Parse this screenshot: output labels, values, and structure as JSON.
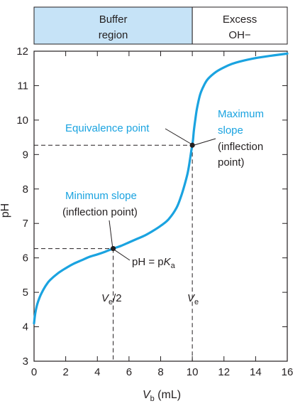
{
  "chart_data": {
    "type": "line",
    "xlabel_main": "V",
    "xlabel_sub": "b",
    "xlabel_unit": " (mL)",
    "ylabel": "pH",
    "xlim": [
      0,
      16
    ],
    "ylim": [
      3,
      12
    ],
    "x_ticks": [
      "0",
      "2",
      "4",
      "6",
      "8",
      "10",
      "12",
      "14",
      "16"
    ],
    "y_ticks": [
      "3",
      "4",
      "5",
      "6",
      "7",
      "8",
      "9",
      "10",
      "11",
      "12"
    ],
    "series": [
      {
        "x": [
          0,
          0.05,
          0.1,
          0.2,
          0.35,
          0.5,
          0.75,
          1.0,
          1.5,
          2.0,
          2.5,
          3.0,
          3.5,
          4.0,
          4.5,
          5.0,
          5.5,
          6.0,
          6.5,
          7.0,
          7.5,
          8.0,
          8.5,
          9.0,
          9.3,
          9.5,
          9.7,
          9.8,
          9.9,
          9.95,
          10.0,
          10.05,
          10.1,
          10.2,
          10.3,
          10.5,
          10.75,
          11.0,
          11.5,
          12.0,
          12.5,
          13.0,
          14.0,
          15.0,
          16.0
        ],
        "y": [
          4.1,
          4.3,
          4.45,
          4.65,
          4.85,
          5.0,
          5.2,
          5.35,
          5.55,
          5.7,
          5.83,
          5.93,
          6.03,
          6.1,
          6.18,
          6.27,
          6.35,
          6.45,
          6.55,
          6.65,
          6.78,
          6.93,
          7.12,
          7.45,
          7.8,
          8.1,
          8.45,
          8.7,
          9.0,
          9.15,
          9.27,
          9.45,
          9.7,
          10.05,
          10.35,
          10.75,
          11.02,
          11.2,
          11.4,
          11.53,
          11.63,
          11.7,
          11.8,
          11.87,
          11.93
        ]
      }
    ],
    "points": [
      {
        "name": "half-equivalence",
        "x": 5,
        "y": 6.27
      },
      {
        "name": "equivalence",
        "x": 10,
        "y": 9.27
      }
    ],
    "regions": [
      {
        "x": [
          0,
          10
        ],
        "line1": "Buffer",
        "line2": "region",
        "fill": "#c6e3f7"
      },
      {
        "x": [
          10,
          16
        ],
        "line1": "Excess",
        "line2": "OH−",
        "fill": "#ffffff"
      }
    ],
    "annotations": {
      "equivalence_point": "Equivalence point",
      "maximum_slope": [
        "Maximum",
        "slope",
        "(inflection",
        "point)"
      ],
      "minimum_slope": "Minimum slope",
      "inflection_point": "(inflection point)",
      "ph_pka_prefix": "pH = p",
      "ph_pka_k": "K",
      "ph_pka_sub": "a",
      "ve_half_main": "V",
      "ve_half_sub": "e",
      "ve_half_suffix": "/2",
      "ve_main": "V",
      "ve_sub": "e"
    },
    "colors": {
      "curve": "#1aa3e0",
      "axis": "#231f20",
      "band": "#c6e3f7",
      "annotation_blue": "#1aa3e0"
    }
  }
}
